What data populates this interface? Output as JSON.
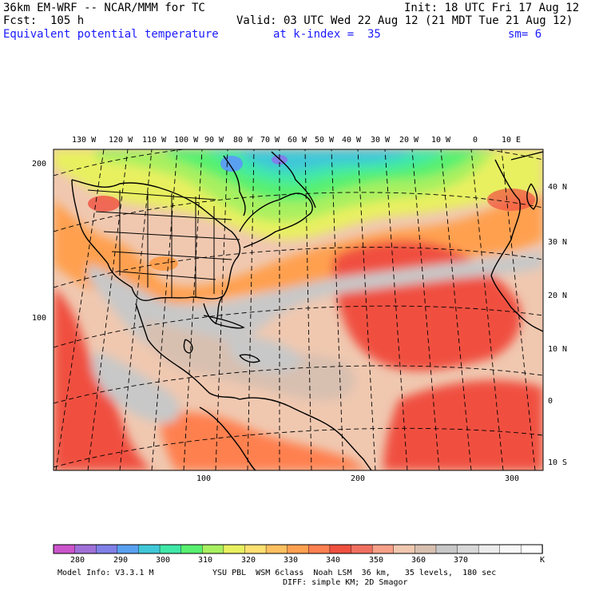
{
  "header": {
    "model": "36km EM-WRF -- NCAR/MMM for TC",
    "init": "Init: 18 UTC Fri 17 Aug 12",
    "fcst": "Fcst:  105 h",
    "valid": "Valid: 03 UTC Wed 22 Aug 12 (21 MDT Tue 21 Aug 12)",
    "field": "Equivalent potential temperature",
    "level": "at k-index =  35",
    "smooth": "sm= 6"
  },
  "map": {
    "lon_labels": [
      "130 W",
      "120 W",
      "110 W",
      "100 W",
      "90 W",
      "80 W",
      "70 W",
      "60 W",
      "50 W",
      "40 W",
      "30 W",
      "20 W",
      "10 W",
      "0",
      "10 E"
    ],
    "lat_labels": [
      "40 N",
      "30 N",
      "20 N",
      "10 N",
      "0",
      "10 S"
    ],
    "grid_y_labels": [
      "200",
      "100"
    ],
    "grid_x_labels": [
      "100",
      "200",
      "300"
    ]
  },
  "colorbar": {
    "unit": "K",
    "labels": [
      "280",
      "290",
      "300",
      "310",
      "320",
      "330",
      "340",
      "350",
      "360",
      "370"
    ],
    "colors": [
      "#cc55cc",
      "#a070d8",
      "#8080e8",
      "#5aa0f0",
      "#40c8d8",
      "#40e8a8",
      "#58f070",
      "#a8f060",
      "#e8f060",
      "#ffe070",
      "#ffc060",
      "#ffa050",
      "#ff8050",
      "#f05040",
      "#f07060",
      "#f8a088",
      "#f0c8b0",
      "#d8c0b0",
      "#c8c8c8",
      "#d8d8d8",
      "#ececec",
      "#f8f8f8",
      "#ffffff"
    ]
  },
  "footer": {
    "model_info": "Model Info: V3.3.1 M",
    "physics_1": "YSU PBL  WSM 6class  Noah LSM  36 km,   35 levels,  180 sec",
    "physics_2": "DIFF: simple KM; 2D Smagor"
  }
}
